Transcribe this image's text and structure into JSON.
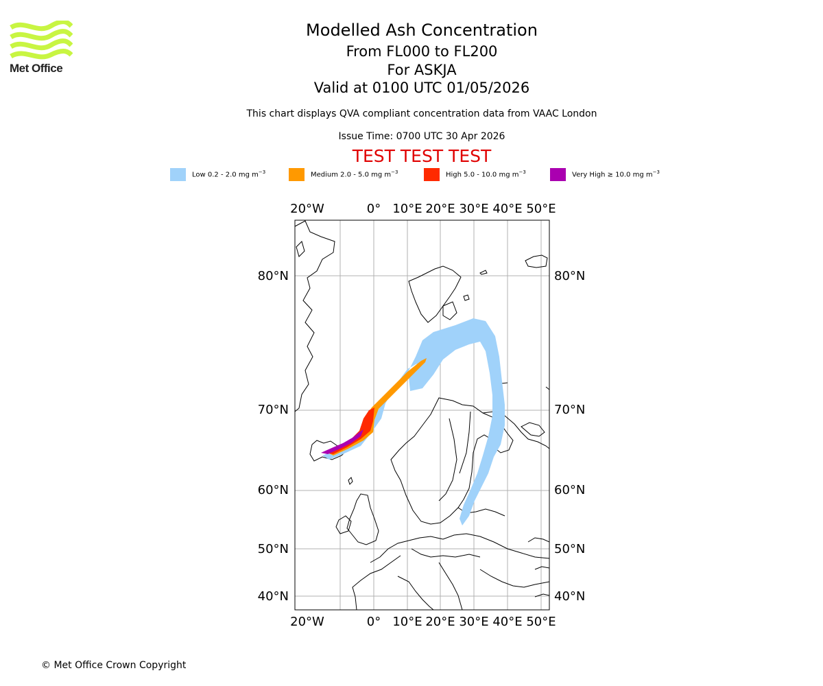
{
  "header": {
    "title": "Modelled Ash Concentration",
    "levels": "From FL000 to FL200",
    "volcano": "For ASKJA",
    "valid": "Valid at 0100 UTC 01/05/2026",
    "description": "This chart displays QVA compliant concentration data from VAAC London",
    "issue_time": "Issue Time: 0700 UTC 30 Apr 2026",
    "test_banner": "TEST TEST TEST"
  },
  "logo": {
    "text": "Met Office",
    "color": "#c8f542"
  },
  "legend": [
    {
      "label": "Low 0.2 - 2.0 mg m",
      "exp": "−3",
      "color": "#a0d2fa"
    },
    {
      "label": "Medium 2.0 - 5.0 mg m",
      "exp": "−3",
      "color": "#ff9900"
    },
    {
      "label": "High 5.0 - 10.0 mg m",
      "exp": "−3",
      "color": "#ff2a00"
    },
    {
      "label": "Very High  ≥  10.0 mg m",
      "exp": "−3",
      "color": "#aa00b0"
    }
  ],
  "map": {
    "lon_labels": [
      "20°W",
      "0°",
      "10°E",
      "20°E",
      "30°E",
      "40°E",
      "50°E"
    ],
    "lat_labels": [
      "80°N",
      "70°N",
      "60°N",
      "50°N",
      "40°N"
    ]
  },
  "footer": {
    "copyright": "© Met Office Crown Copyright"
  }
}
